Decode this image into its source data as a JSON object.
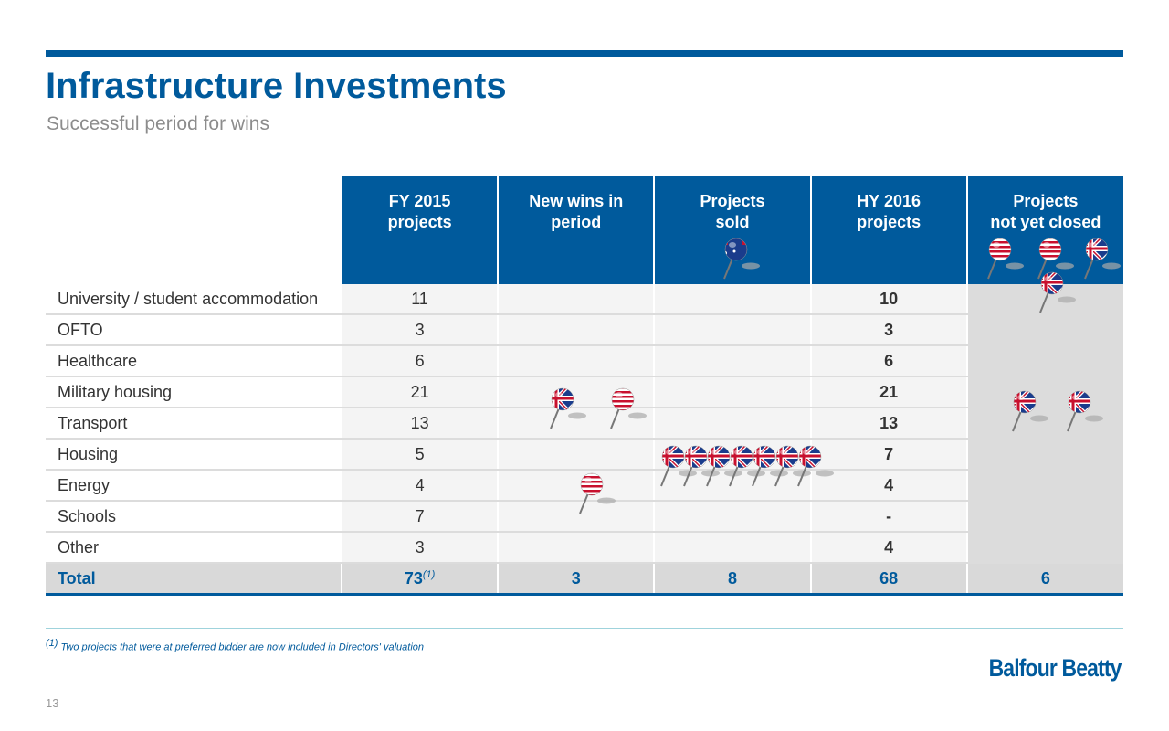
{
  "title": "Infrastructure Investments",
  "subtitle": "Successful period for wins",
  "table": {
    "headers": [
      [
        "FY 2015",
        "projects"
      ],
      [
        "New wins in",
        "period"
      ],
      [
        "Projects",
        "sold"
      ],
      [
        "HY 2016",
        "projects"
      ],
      [
        "Projects",
        "not yet closed"
      ]
    ],
    "rows": [
      {
        "label": "University / student accommodation",
        "fy2015": "11",
        "hy2016": "10"
      },
      {
        "label": "OFTO",
        "fy2015": "3",
        "hy2016": "3"
      },
      {
        "label": "Healthcare",
        "fy2015": "6",
        "hy2016": "6"
      },
      {
        "label": "Military housing",
        "fy2015": "21",
        "hy2016": "21"
      },
      {
        "label": "Transport",
        "fy2015": "13",
        "hy2016": "13"
      },
      {
        "label": "Housing",
        "fy2015": "5",
        "hy2016": "7"
      },
      {
        "label": "Energy",
        "fy2015": "4",
        "hy2016": "4"
      },
      {
        "label": "Schools",
        "fy2015": "7",
        "hy2016": "-"
      },
      {
        "label": "Other",
        "fy2015": "3",
        "hy2016": "4"
      }
    ],
    "total": {
      "label": "Total",
      "fy2015": "73",
      "fy2015_note": "(1)",
      "new_wins": "3",
      "sold": "8",
      "hy2016": "68",
      "not_closed": "6"
    }
  },
  "pins": [
    "australia",
    "usa",
    "usa",
    "uk",
    "uk",
    "uk",
    "usa",
    "uk",
    "uk",
    "uk",
    "uk",
    "uk",
    "uk",
    "uk",
    "uk",
    "uk",
    "usa"
  ],
  "footnote": {
    "marker": "(1)",
    "text": "Two projects that were at preferred bidder are now included in Directors' valuation"
  },
  "logo": "Balfour Beatty",
  "page_number": "13",
  "colors": {
    "brand": "#005a9c"
  }
}
